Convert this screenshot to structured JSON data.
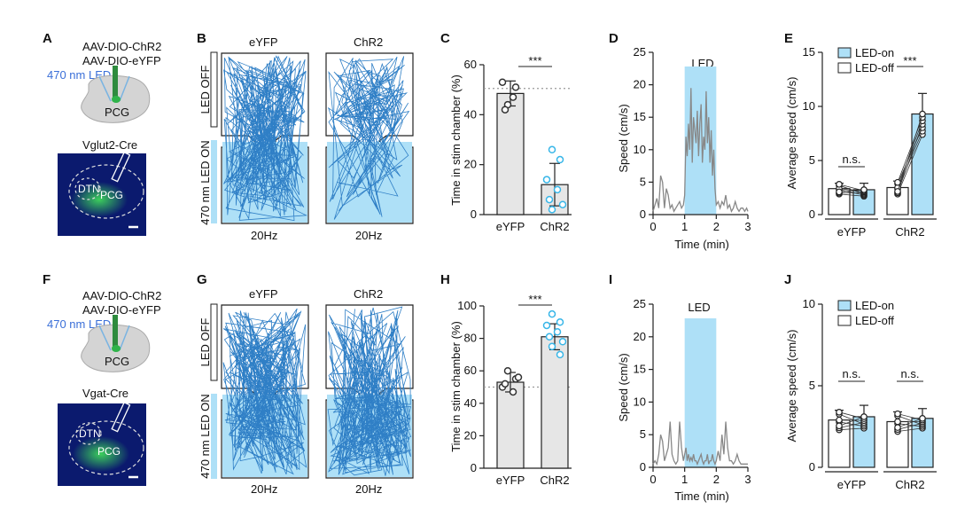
{
  "colors": {
    "led_blue": "#aee0f7",
    "trace_blue": "#2f7fc6",
    "bar_grey": "#e6e6e6",
    "point_cyan": "#38b6e8",
    "label_blue": "#3a6fd8",
    "brain_green": "#2fb34a"
  },
  "top": {
    "label_a": "A",
    "label_b": "B",
    "label_c": "C",
    "label_d": "D",
    "label_e": "E",
    "virus1": "AAV-DIO-ChR2",
    "virus2": "AAV-DIO-eYFP",
    "led": "470 nm LED",
    "region": "PCG",
    "mouse_line": "Vglut2-Cre",
    "dtn": "DTN",
    "pcg_slice": "PCG",
    "col_eyfp": "eYFP",
    "col_chr2": "ChR2",
    "led_off": "LED OFF",
    "led_on": "470 nm LED ON",
    "freq_eyfp": "20Hz",
    "freq_chr2": "20Hz",
    "sig": "***",
    "led_bar": "LED",
    "ns": "n.s.",
    "sig_e": "***",
    "legend_on": "LED-on",
    "legend_off": "LED-off"
  },
  "bottom": {
    "label_f": "F",
    "label_g": "G",
    "label_h": "H",
    "label_i": "I",
    "label_j": "J",
    "virus1": "AAV-DIO-ChR2",
    "virus2": "AAV-DIO-eYFP",
    "led": "470 nm LED",
    "region": "PCG",
    "mouse_line": "Vgat-Cre",
    "dtn": "DTN",
    "pcg_slice": "PCG",
    "col_eyfp": "eYFP",
    "col_chr2": "ChR2",
    "led_off": "LED OFF",
    "led_on": "470 nm LED ON",
    "freq_eyfp": "20Hz",
    "freq_chr2": "20Hz",
    "sig": "***",
    "led_bar": "LED",
    "ns1": "n.s.",
    "ns2": "n.s.",
    "legend_on": "LED-on",
    "legend_off": "LED-off"
  },
  "chart_data": [
    {
      "panel": "C",
      "type": "bar",
      "ylabel": "Time in stim chamber (%)",
      "categories": [
        "eYFP",
        "ChR2"
      ],
      "values": [
        48.5,
        12
      ],
      "errors": [
        5,
        8.5
      ],
      "ylim": [
        0,
        60
      ],
      "yticks": [
        0,
        20,
        40,
        60
      ],
      "chance": 50.5,
      "significance": "***",
      "points": [
        [
          44,
          51,
          53,
          47,
          42
        ],
        [
          26,
          22,
          14,
          10,
          6,
          4,
          2
        ]
      ]
    },
    {
      "panel": "D",
      "type": "line",
      "xlabel": "Time (min)",
      "ylabel": "Speed (cm/s)",
      "xlim": [
        0,
        3
      ],
      "ylim": [
        0,
        25
      ],
      "xticks": [
        0,
        1,
        2,
        3
      ],
      "yticks": [
        0,
        5,
        10,
        15,
        20,
        25
      ],
      "led_window": [
        1,
        2
      ],
      "led_label": "LED",
      "x": [
        0,
        0.06,
        0.12,
        0.18,
        0.24,
        0.3,
        0.36,
        0.42,
        0.48,
        0.54,
        0.6,
        0.66,
        0.72,
        0.78,
        0.84,
        0.9,
        0.96,
        1.0,
        1.04,
        1.08,
        1.12,
        1.16,
        1.2,
        1.24,
        1.28,
        1.32,
        1.36,
        1.4,
        1.44,
        1.48,
        1.52,
        1.56,
        1.6,
        1.64,
        1.68,
        1.72,
        1.76,
        1.8,
        1.84,
        1.88,
        1.92,
        1.96,
        2.0,
        2.06,
        2.12,
        2.18,
        2.24,
        2.3,
        2.36,
        2.42,
        2.48,
        2.54,
        2.6,
        2.66,
        2.72,
        2.78,
        2.84,
        2.9,
        2.96,
        3.0
      ],
      "y": [
        0.5,
        1.5,
        2.5,
        1,
        6,
        5,
        1,
        4,
        3,
        1,
        1.5,
        0.5,
        1,
        1.5,
        2,
        1,
        1.5,
        3,
        12,
        9,
        14,
        10,
        19.5,
        8,
        15,
        13,
        11,
        16,
        9,
        14,
        17,
        8,
        12,
        10,
        19,
        11,
        15,
        8,
        13,
        6,
        10,
        4,
        1.5,
        2,
        1,
        2,
        1.5,
        3,
        1,
        1.5,
        0.5,
        1,
        2,
        1,
        0.5,
        1,
        1,
        0.5,
        1,
        0.5
      ]
    },
    {
      "panel": "E",
      "type": "bar",
      "ylabel": "Average speed (cm/s)",
      "categories": [
        "eYFP",
        "ChR2"
      ],
      "series": [
        {
          "name": "LED-off",
          "values": [
            2.4,
            2.5
          ]
        },
        {
          "name": "LED-on",
          "values": [
            2.3,
            9.3
          ]
        }
      ],
      "errors_off": [
        0.5,
        0.6
      ],
      "errors_on": [
        0.6,
        1.9
      ],
      "ylim": [
        0,
        15
      ],
      "yticks": [
        0,
        5,
        10,
        15
      ],
      "significance": [
        "n.s.",
        "***"
      ]
    },
    {
      "panel": "H",
      "type": "bar",
      "ylabel": "Time in stim chamber (%)",
      "categories": [
        "eYFP",
        "ChR2"
      ],
      "values": [
        53,
        81
      ],
      "errors": [
        6,
        8
      ],
      "ylim": [
        0,
        100
      ],
      "yticks": [
        0,
        20,
        40,
        60,
        80,
        100
      ],
      "chance": 50,
      "significance": "***",
      "points": [
        [
          60,
          55,
          50,
          47,
          52,
          56
        ],
        [
          95,
          90,
          88,
          84,
          81,
          78,
          75,
          70
        ]
      ]
    },
    {
      "panel": "I",
      "type": "line",
      "xlabel": "Time (min)",
      "ylabel": "Speed (cm/s)",
      "xlim": [
        0,
        3
      ],
      "ylim": [
        0,
        25
      ],
      "xticks": [
        0,
        1,
        2,
        3
      ],
      "yticks": [
        0,
        5,
        10,
        15,
        20,
        25
      ],
      "led_window": [
        1,
        2
      ],
      "led_label": "LED",
      "x": [
        0,
        0.06,
        0.12,
        0.18,
        0.24,
        0.3,
        0.36,
        0.42,
        0.48,
        0.54,
        0.6,
        0.66,
        0.72,
        0.78,
        0.84,
        0.9,
        0.96,
        1.0,
        1.04,
        1.08,
        1.12,
        1.16,
        1.2,
        1.24,
        1.28,
        1.32,
        1.36,
        1.4,
        1.44,
        1.48,
        1.52,
        1.56,
        1.6,
        1.64,
        1.68,
        1.72,
        1.76,
        1.8,
        1.84,
        1.88,
        1.92,
        1.96,
        2.0,
        2.06,
        2.12,
        2.18,
        2.24,
        2.3,
        2.36,
        2.42,
        2.48,
        2.54,
        2.6,
        2.66,
        2.72,
        2.78,
        2.84,
        2.9,
        2.96,
        3.0
      ],
      "y": [
        0.5,
        1,
        0.5,
        2,
        5,
        4,
        1,
        2,
        3,
        7,
        2,
        1,
        0.5,
        1,
        7,
        3,
        1,
        2,
        3,
        1,
        2,
        1,
        1.5,
        1,
        2,
        1,
        1,
        0.5,
        1,
        1.5,
        2,
        1,
        0.5,
        1,
        1,
        2,
        0.5,
        1,
        1,
        2,
        1,
        0.5,
        1,
        2.5,
        1,
        5,
        2,
        7,
        3,
        1,
        1,
        0.5,
        1,
        2,
        1,
        0.5,
        0.5,
        0.5,
        0.5,
        0.5
      ]
    },
    {
      "panel": "J",
      "type": "bar",
      "ylabel": "Average speed (cm/s)",
      "categories": [
        "eYFP",
        "ChR2"
      ],
      "series": [
        {
          "name": "LED-off",
          "values": [
            2.9,
            2.8
          ]
        },
        {
          "name": "LED-on",
          "values": [
            3.1,
            3.0
          ]
        }
      ],
      "errors_off": [
        0.6,
        0.6
      ],
      "errors_on": [
        0.7,
        0.6
      ],
      "ylim": [
        0,
        10
      ],
      "yticks": [
        0,
        5,
        10
      ],
      "significance": [
        "n.s.",
        "n.s."
      ]
    }
  ]
}
